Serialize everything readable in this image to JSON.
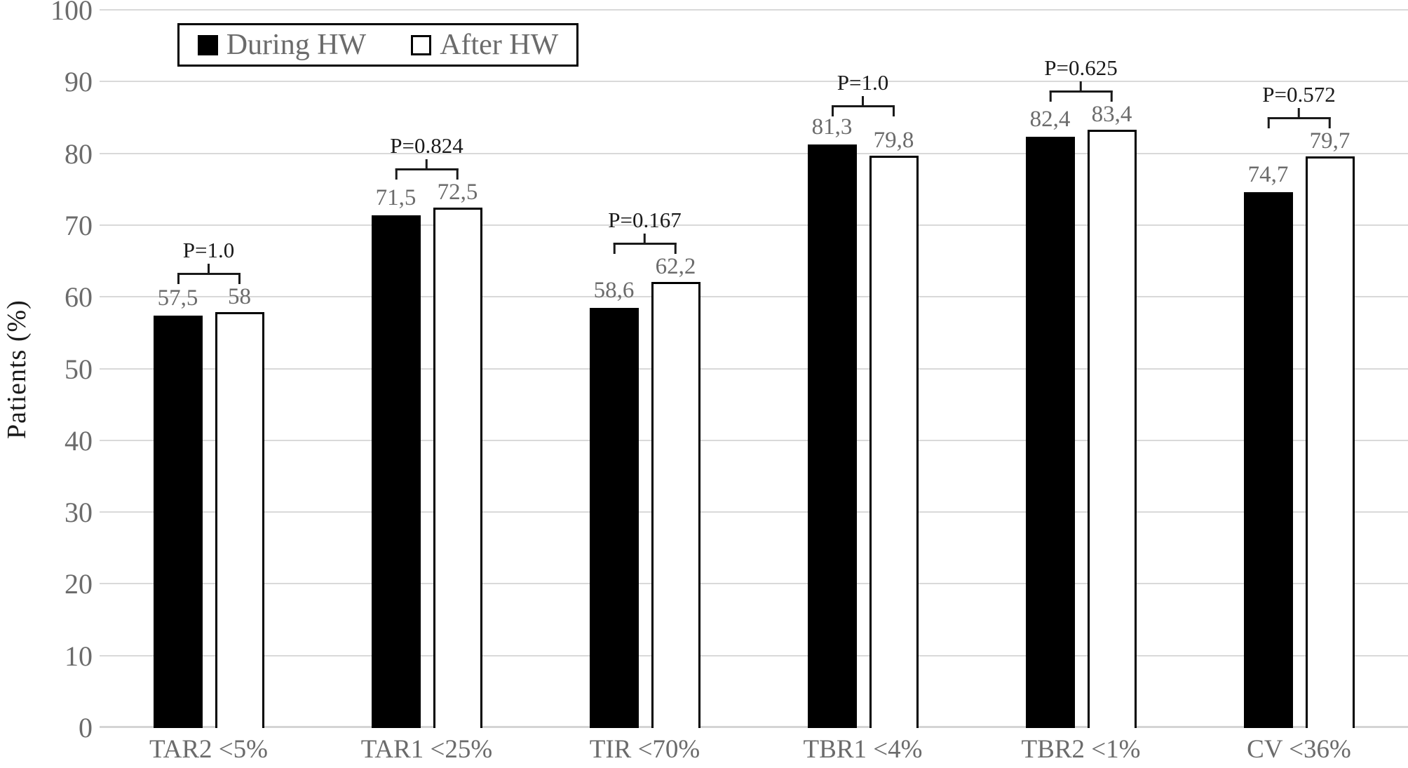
{
  "chart_data": {
    "type": "bar",
    "title": "",
    "ylabel": "Patients (%)",
    "xlabel": "",
    "ylim": [
      0,
      100
    ],
    "ytick_step": 10,
    "grid": true,
    "legend_position": "top",
    "categories": [
      "TAR2 <5%",
      "TAR1 <25%",
      "TIR <70%",
      "TBR1 <4%",
      "TBR2 <1%",
      "CV <36%"
    ],
    "series": [
      {
        "name": "During HW",
        "style": "filled-black",
        "values": [
          57.5,
          71.5,
          58.6,
          81.3,
          82.4,
          74.7
        ],
        "labels": [
          "57,5",
          "71,5",
          "58,6",
          "81,3",
          "82,4",
          "74,7"
        ]
      },
      {
        "name": "After HW",
        "style": "white-outlined",
        "values": [
          58,
          72.5,
          62.2,
          79.8,
          83.4,
          79.7
        ],
        "labels": [
          "58",
          "72,5",
          "62,2",
          "79,8",
          "83,4",
          "79,7"
        ]
      }
    ],
    "p_values": [
      "P=1.0",
      "P=0.824",
      "P=0.167",
      "P=1.0",
      "P=0.625",
      "P=0.572"
    ]
  },
  "colors": {
    "bar_during": "#000000",
    "bar_after": "#ffffff",
    "bar_border": "#000000",
    "gridline": "#d9d9d9",
    "gray_text": "#6b6b6b",
    "black_text": "#1a1a1a"
  }
}
